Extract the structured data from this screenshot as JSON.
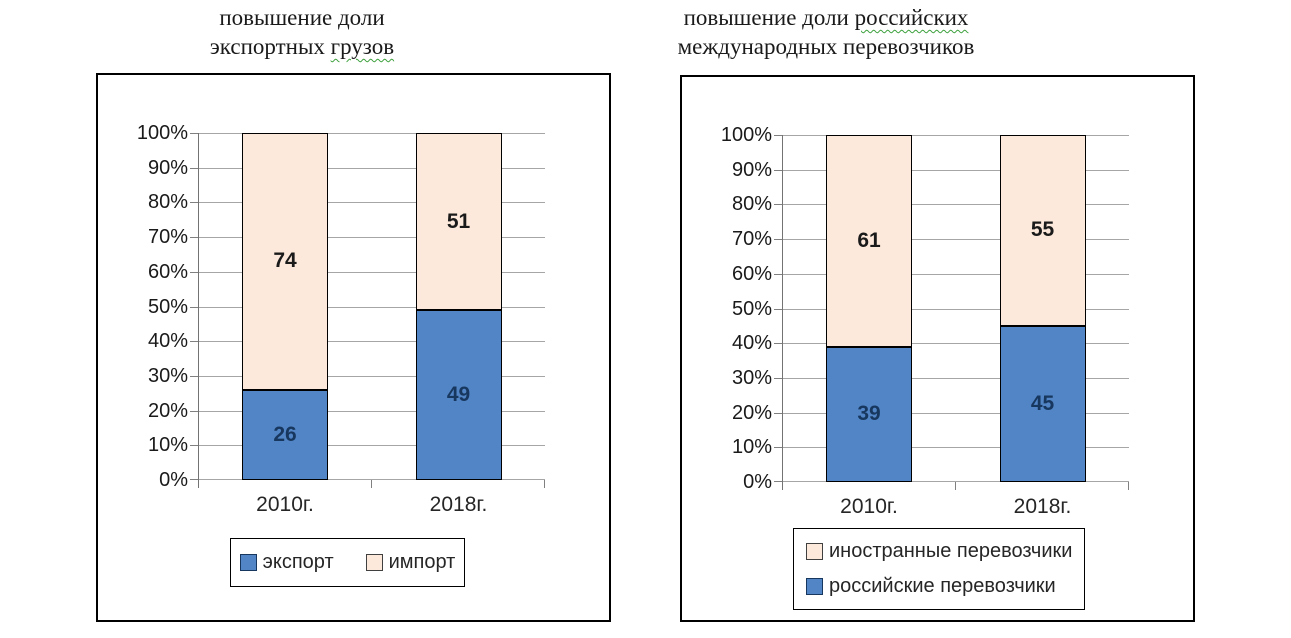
{
  "titles": [
    {
      "lines": [
        [
          {
            "text": "повышение доли",
            "wavy": false
          }
        ],
        [
          {
            "text": "экспортных ",
            "wavy": false
          },
          {
            "text": "грузов",
            "wavy": true
          }
        ]
      ]
    },
    {
      "lines": [
        [
          {
            "text": "повышение доли ",
            "wavy": false
          },
          {
            "text": "российских",
            "wavy": true
          }
        ],
        [
          {
            "text": "международных перевозчиков",
            "wavy": false
          }
        ]
      ]
    }
  ],
  "chart_data": [
    {
      "type": "bar",
      "stacked": true,
      "title": "повышение доли экспортных грузов",
      "categories": [
        "2010г.",
        "2018г."
      ],
      "series": [
        {
          "name": "экспорт",
          "color": "#5285C6",
          "border": "#000000",
          "label_color": "#17375E",
          "values": [
            26,
            49
          ]
        },
        {
          "name": "импорт",
          "color": "#FCE9DB",
          "border": "#000000",
          "label_color": "#1A1A1A",
          "values": [
            74,
            51
          ]
        }
      ],
      "ylim": [
        0,
        100
      ],
      "y_ticks": [
        "0%",
        "10%",
        "20%",
        "30%",
        "40%",
        "50%",
        "60%",
        "70%",
        "80%",
        "90%",
        "100%"
      ],
      "grid": true,
      "legend": {
        "position": "bottom",
        "layout": "row",
        "items": [
          {
            "label": "экспорт",
            "color": "#5285C6",
            "border": "#17375E"
          },
          {
            "label": "импорт",
            "color": "#FCE9DB",
            "border": "#404040"
          }
        ]
      }
    },
    {
      "type": "bar",
      "stacked": true,
      "title": "повышение доли российских международных перевозчиков",
      "categories": [
        "2010г.",
        "2018г."
      ],
      "series": [
        {
          "name": "российские перевозчики",
          "color": "#5285C6",
          "border": "#000000",
          "label_color": "#17375E",
          "values": [
            39,
            45
          ]
        },
        {
          "name": "иностранные перевозчики",
          "color": "#FCE9DB",
          "border": "#000000",
          "label_color": "#1A1A1A",
          "values": [
            61,
            55
          ]
        }
      ],
      "ylim": [
        0,
        100
      ],
      "y_ticks": [
        "0%",
        "10%",
        "20%",
        "30%",
        "40%",
        "50%",
        "60%",
        "70%",
        "80%",
        "90%",
        "100%"
      ],
      "grid": true,
      "legend": {
        "position": "bottom",
        "layout": "column",
        "items": [
          {
            "label": "иностранные перевозчики",
            "color": "#FCE9DB",
            "border": "#404040"
          },
          {
            "label": "российские перевозчики",
            "color": "#5285C6",
            "border": "#17375E"
          }
        ]
      }
    }
  ],
  "colors": {
    "blue_series": "#5285C6",
    "peach_series": "#FCE9DB",
    "gridline": "#A6A6A6",
    "axis": "#737373",
    "text": "#262626",
    "wavy_underline": "#3BA03B",
    "box_border": "#000000"
  }
}
